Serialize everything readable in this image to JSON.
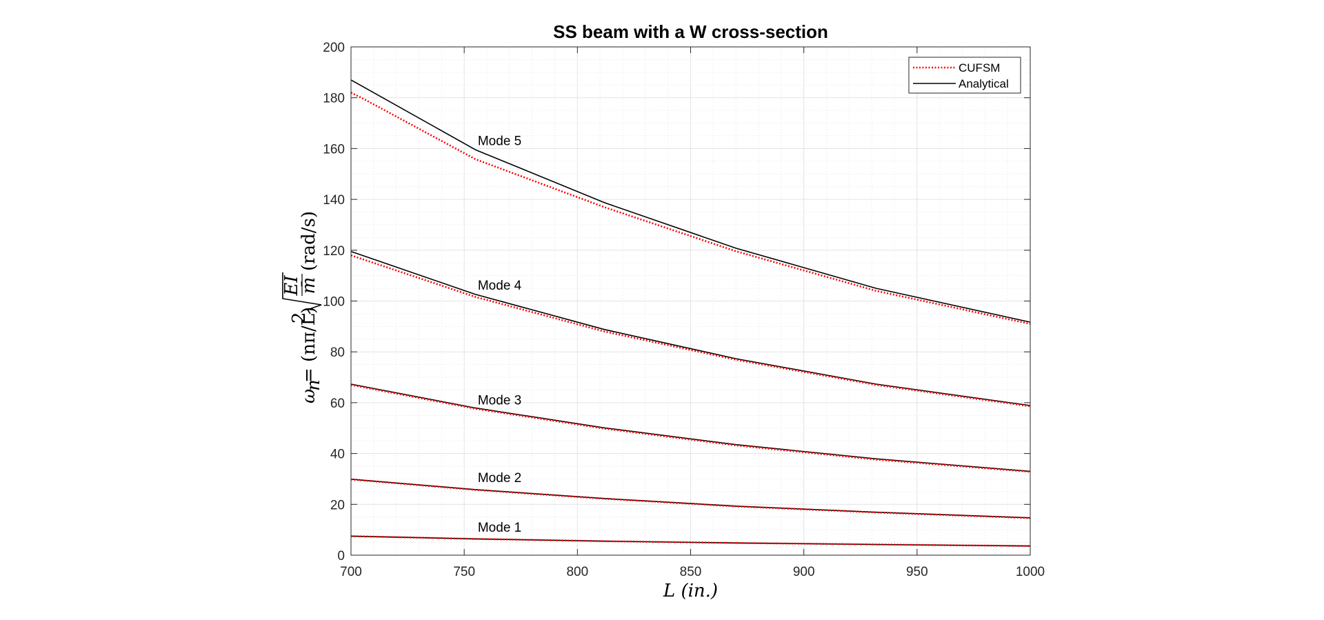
{
  "chart_data": {
    "type": "line",
    "title": "SS beam with a W cross-section",
    "xlabel": "L (in.)",
    "ylabel_prefix": "ω",
    "ylabel_sub": "n",
    "ylabel_mid": " = (nπ/L)",
    "ylabel_sup": "2",
    "ylabel_frac_num": "EI",
    "ylabel_frac_den": "m̄",
    "ylabel_unit": " (rad/s)",
    "xlim": [
      700,
      1000
    ],
    "ylim": [
      0,
      200
    ],
    "xticks": [
      700,
      750,
      800,
      850,
      900,
      950,
      1000
    ],
    "yticks": [
      0,
      20,
      40,
      60,
      80,
      100,
      120,
      140,
      160,
      180,
      200
    ],
    "grid": true,
    "minor_grid": true,
    "legend_position": "top-right",
    "series": [
      {
        "name": "CUFSM",
        "color": "#ff0000",
        "style": "dotted",
        "curves": [
          {
            "x": [
              700,
              755,
              812,
              870,
              932,
              1000
            ],
            "y": [
              7.5,
              6.4,
              5.5,
              4.8,
              4.2,
              3.6
            ]
          },
          {
            "x": [
              700,
              755,
              812,
              870,
              932,
              1000
            ],
            "y": [
              29.8,
              25.7,
              22.2,
              19.2,
              16.8,
              14.6
            ]
          },
          {
            "x": [
              700,
              755,
              812,
              870,
              932,
              1000
            ],
            "y": [
              67.0,
              57.6,
              49.8,
              43.2,
              37.6,
              32.8
            ]
          },
          {
            "x": [
              700,
              755,
              812,
              870,
              932,
              1000
            ],
            "y": [
              118.0,
              101.6,
              88.0,
              76.9,
              67.0,
              58.6
            ]
          },
          {
            "x": [
              700,
              705,
              755,
              812,
              870,
              932,
              1000
            ],
            "y": [
              182.0,
              179.8,
              155.8,
              136.9,
              119.6,
              104.0,
              91.0
            ]
          }
        ]
      },
      {
        "name": "Analytical",
        "color": "#000000",
        "style": "solid",
        "curves": [
          {
            "x": [
              700,
              755,
              812,
              870,
              932,
              1000
            ],
            "y": [
              7.5,
              6.4,
              5.5,
              4.8,
              4.2,
              3.6
            ]
          },
          {
            "x": [
              700,
              755,
              812,
              870,
              932,
              1000
            ],
            "y": [
              29.9,
              25.8,
              22.3,
              19.3,
              16.9,
              14.7
            ]
          },
          {
            "x": [
              700,
              755,
              812,
              870,
              932,
              1000
            ],
            "y": [
              67.3,
              57.9,
              50.1,
              43.5,
              37.9,
              33.0
            ]
          },
          {
            "x": [
              700,
              755,
              812,
              870,
              932,
              1000
            ],
            "y": [
              119.5,
              102.6,
              88.8,
              77.3,
              67.3,
              58.9
            ]
          },
          {
            "x": [
              700,
              707,
              755,
              812,
              870,
              932,
              1000
            ],
            "y": [
              187.0,
              183.5,
              159.5,
              138.7,
              120.8,
              105.0,
              91.7
            ]
          }
        ]
      }
    ],
    "annotations": [
      {
        "text": "Mode 1",
        "x": 756,
        "y": 9.2
      },
      {
        "text": "Mode 2",
        "x": 756,
        "y": 28.8
      },
      {
        "text": "Mode 3",
        "x": 756,
        "y": 59.3
      },
      {
        "text": "Mode 4",
        "x": 756,
        "y": 104.5
      },
      {
        "text": "Mode 5",
        "x": 756,
        "y": 161.3
      }
    ]
  }
}
